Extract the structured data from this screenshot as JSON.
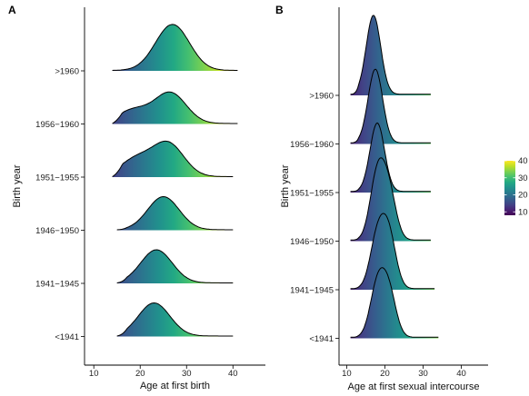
{
  "chart_data": [
    {
      "type": "ridgeline",
      "panel_label": "A",
      "xlabel": "Age at first birth",
      "ylabel": "Birth year",
      "xlim": [
        8,
        47
      ],
      "x_ticks": [
        10,
        20,
        30,
        40
      ],
      "fill": "viridis gradient along x",
      "series": [
        {
          "name": "<1941",
          "peaks": [
            {
              "x": 23,
              "height": 1.35
            }
          ],
          "x": [
            15,
            40
          ]
        },
        {
          "name": "1941−1945",
          "peaks": [
            {
              "x": 23.5,
              "height": 1.35
            }
          ],
          "x": [
            15,
            40
          ]
        },
        {
          "name": "1946−1950",
          "peaks": [
            {
              "x": 25,
              "height": 1.35
            }
          ],
          "x": [
            15,
            40
          ]
        },
        {
          "name": "1951−1955",
          "peaks": [
            {
              "x": 19,
              "height": 0.7
            },
            {
              "x": 26,
              "height": 1.35
            }
          ],
          "x": [
            14,
            40
          ]
        },
        {
          "name": "1956−1960",
          "peaks": [
            {
              "x": 18.5,
              "height": 0.55
            },
            {
              "x": 26.5,
              "height": 1.25
            }
          ],
          "x": [
            14,
            41
          ]
        },
        {
          "name": ">1960",
          "peaks": [
            {
              "x": 25.5,
              "height": 0.85
            },
            {
              "x": 28,
              "height": 1.15
            }
          ],
          "x": [
            14,
            41
          ]
        }
      ]
    },
    {
      "type": "ridgeline",
      "panel_label": "B",
      "xlabel": "Age at first sexual intercourse",
      "ylabel": "Birth year",
      "xlim": [
        8,
        47
      ],
      "x_ticks": [
        10,
        20,
        30,
        40
      ],
      "fill": "viridis gradient along x",
      "series": [
        {
          "name": "<1941",
          "peaks": [
            {
              "x": 18,
              "height": 0.95
            },
            {
              "x": 21,
              "height": 0.85
            }
          ],
          "x": [
            11,
            34
          ]
        },
        {
          "name": "1941−1945",
          "peaks": [
            {
              "x": 18,
              "height": 0.95
            },
            {
              "x": 21,
              "height": 1.0
            }
          ],
          "x": [
            11,
            33
          ]
        },
        {
          "name": "1946−1950",
          "peaks": [
            {
              "x": 18,
              "height": 1.2
            },
            {
              "x": 21,
              "height": 0.9
            }
          ],
          "x": [
            11,
            32
          ]
        },
        {
          "name": "1951−1955",
          "peaks": [
            {
              "x": 18,
              "height": 1.3
            }
          ],
          "x": [
            11,
            32
          ]
        },
        {
          "name": "1956−1960",
          "peaks": [
            {
              "x": 17.5,
              "height": 1.4
            }
          ],
          "x": [
            11,
            32
          ]
        },
        {
          "name": ">1960",
          "peaks": [
            {
              "x": 17,
              "height": 1.5
            }
          ],
          "x": [
            11,
            32
          ]
        }
      ],
      "legend": {
        "title": "",
        "range": [
          8,
          40
        ],
        "ticks": [
          10,
          20,
          30,
          40
        ],
        "palette": "viridis",
        "placement": "right"
      }
    }
  ]
}
